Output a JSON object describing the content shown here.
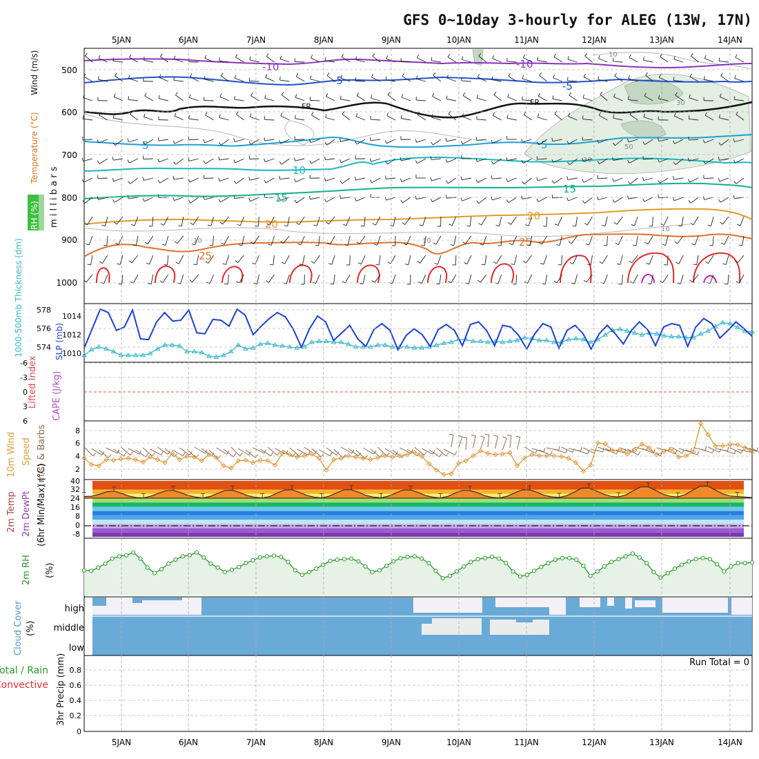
{
  "title": "GFS 0~10day 3-hourly for ALEG (13W, 17N)",
  "colors": {
    "grid": "#aaaaaa",
    "rh_fill": "#e6f2e6",
    "slp": "#1a3fd0",
    "thick": "#35b6c8",
    "wind10m": "#e09a3a",
    "barb": "#8a6a50",
    "temp_line": "#3a2a2a",
    "rh2m": "#2a9a2a",
    "cloud": "#6aaad6",
    "cloud_clear": "#f4f0f8",
    "red": "#e03030",
    "purple": "#9a3ad0"
  },
  "dates": [
    "5JAN",
    "6JAN",
    "7JAN",
    "8JAN",
    "9JAN",
    "10JAN",
    "11JAN",
    "12JAN",
    "13JAN",
    "14JAN"
  ],
  "panel1": {
    "ylabel_parts": {
      "rh": "RH (%)",
      "temp": "Temperature (°C)",
      "wind": "Wind (m/s)",
      "mb": "m i l l i b a r s"
    },
    "y_ticks": [
      "500",
      "600",
      "700",
      "800",
      "900",
      "1000"
    ],
    "isotherm_labels": [
      "-10",
      "-10",
      "-5",
      "-5",
      "FR",
      "FR",
      "5",
      "5",
      "10",
      "15",
      "15",
      "20",
      "20",
      "25",
      "25"
    ],
    "rh_labels": [
      "10",
      "30",
      "50",
      "30",
      "10",
      "10",
      "10"
    ]
  },
  "panel2": {
    "ylabel_thick": "1000-500mb Thickness (dm)",
    "ylabel_slp": "SLP (mb)",
    "thick_ticks": [
      "578",
      "576",
      "574"
    ],
    "slp_ticks": [
      "1014",
      "1012",
      "1010"
    ]
  },
  "panel3": {
    "ylabel_li": "Lifted Index",
    "ylabel_cape": "CAPE (J/kg)",
    "li_ticks": [
      "-6",
      "-3",
      "0",
      "3",
      "6"
    ]
  },
  "panel4": {
    "ylabel_a": "10m Wind",
    "ylabel_b": "Speed",
    "ylabel_c": "(m/s) & Barbs",
    "ticks": [
      "8",
      "6",
      "4",
      "2"
    ]
  },
  "panel5": {
    "ylabel_a": "2m Temp",
    "ylabel_b": "2m DewPt",
    "ylabel_c": "(6hr Min/Max) (°C)",
    "ticks": [
      "40",
      "32",
      "24",
      "16",
      "8",
      "0",
      "-8"
    ]
  },
  "panel6": {
    "ylabel": "2m RH",
    "unit": "(%)"
  },
  "panel7": {
    "ylabel": "Cloud Cover",
    "unit": "(%)",
    "levels": [
      "high",
      "middle",
      "low"
    ]
  },
  "panel8": {
    "ylabel_a": "Total / Rain",
    "ylabel_b": "Convective",
    "ylabel_c": "3hr Precip (mm)",
    "ticks": [
      "0.8",
      "0.6",
      "0.4",
      "0.2",
      "0"
    ],
    "run_total": "Run Total = 0"
  },
  "chart_data": [
    {
      "type": "line",
      "title": "1000-500mb Thickness (dm) & SLP (mb)",
      "ylim_thickness": [
        573,
        579
      ],
      "ylim_slp": [
        1008.6,
        1015.2
      ],
      "series": [
        {
          "name": "SLP (mb)",
          "values": [
            1010.1,
            1012.4,
            1014.7,
            1014.3,
            1012.2,
            1012.6,
            1014.6,
            1011.2,
            1011.1,
            1013.2,
            1014.3,
            1013.3,
            1013.4,
            1014.6,
            1011.9,
            1011.8,
            1013.5,
            1013.4,
            1012.7,
            1014.7,
            1014.0,
            1011.7,
            1012.7,
            1013.6,
            1014.3,
            1013.8,
            1012.3,
            1010.2,
            1012.4,
            1013.9,
            1013.2,
            1011.0,
            1011.9,
            1012.8,
            1011.2,
            1010.3,
            1012.3,
            1013.0,
            1012.2,
            1009.9,
            1011.6,
            1012.4,
            1011.7,
            1010.3,
            1012.3,
            1012.9,
            1012.2,
            1010.4,
            1012.9,
            1013.2,
            1012.2,
            1010.4,
            1012.8,
            1012.6,
            1011.6,
            1010.0,
            1011.8,
            1013.0,
            1012.6,
            1010.1,
            1012.2,
            1012.8,
            1011.8,
            1010.0,
            1011.8,
            1012.8,
            1011.8,
            1010.6,
            1012.2,
            1013.2,
            1012.3,
            1010.4,
            1012.6,
            1013.0,
            1012.8,
            1010.3,
            1012.6,
            1013.6,
            1013.0,
            1011.3,
            1012.2,
            1013.2,
            1012.4,
            1011.5
          ]
        },
        {
          "name": "1000-500mb Thickness (dm)",
          "values": [
            573.6,
            574.2,
            574.5,
            574.3,
            574.0,
            573.6,
            573.6,
            573.6,
            573.6,
            573.8,
            574.3,
            574.7,
            574.7,
            574.6,
            574.0,
            574.0,
            573.9,
            573.5,
            573.4,
            573.6,
            574.0,
            574.7,
            574.3,
            574.4,
            574.8,
            574.9,
            574.7,
            574.6,
            574.5,
            574.4,
            574.5,
            575.0,
            575.1,
            575.1,
            575.0,
            575.0,
            574.8,
            574.5,
            574.5,
            574.5,
            574.7,
            574.7,
            574.5,
            574.5,
            574.5,
            574.4,
            574.4,
            574.5,
            574.7,
            574.9,
            575.0,
            575.3,
            575.3,
            575.1,
            575.1,
            575.0,
            575.1,
            575.0,
            575.1,
            575.2,
            575.5,
            575.4,
            575.2,
            575.2,
            575.0,
            575.0,
            575.3,
            575.4,
            575.3,
            575.0,
            575.3,
            575.8,
            576.3,
            576.4,
            576.2,
            576.0,
            575.8,
            576.0,
            575.9,
            575.7,
            575.6,
            575.6,
            575.5,
            575.5,
            575.9,
            576.2,
            576.7,
            577.1,
            577.0,
            576.6,
            576.2,
            576.1
          ]
        }
      ]
    },
    {
      "type": "line",
      "title": "10m Wind Speed (m/s)",
      "ylim": [
        0,
        9
      ],
      "values": [
        3.2,
        2.2,
        2.0,
        3.0,
        2.9,
        3.1,
        3.2,
        3.0,
        2.6,
        3.4,
        3.0,
        2.5,
        4.0,
        3.0,
        3.5,
        3.4,
        2.8,
        3.8,
        3.3,
        2.0,
        1.6,
        2.8,
        2.9,
        2.5,
        2.9,
        2.8,
        2.1,
        4.0,
        3.8,
        3.4,
        3.6,
        3.9,
        3.2,
        1.3,
        3.0,
        3.2,
        3.6,
        3.4,
        3.2,
        3.0,
        3.3,
        3.6,
        3.4,
        3.6,
        3.8,
        4.2,
        3.5,
        2.3,
        1.3,
        0.6,
        0.7,
        2.4,
        2.8,
        3.6,
        4.4,
        4.0,
        3.8,
        3.9,
        4.1,
        2.0,
        3.2,
        3.8,
        3.6,
        3.6,
        3.6,
        3.5,
        3.2,
        2.5,
        1.1,
        2.1,
        5.7,
        5.5,
        4.4,
        4.6,
        3.9,
        4.5,
        5.5,
        4.9,
        3.8,
        4.3,
        4.7,
        3.4,
        3.6,
        4.2,
        8.8,
        7.0,
        5.2,
        5.2,
        5.4,
        5.4,
        4.9,
        4.2
      ]
    },
    {
      "type": "area",
      "title": "2m Temp (°C)",
      "ylim": [
        -12,
        40
      ],
      "values": [
        25.5,
        25.8,
        27.5,
        29.8,
        30.5,
        28.5,
        26.0,
        24.5,
        24.2,
        25.8,
        28.5,
        30.8,
        31.2,
        29.0,
        26.5,
        25.0,
        24.2,
        25.6,
        28.5,
        31.2,
        31.4,
        29.0,
        26.4,
        24.8,
        24.2,
        25.5,
        28.7,
        31.6,
        31.8,
        29.3,
        26.6,
        24.9,
        24.2,
        25.8,
        28.8,
        31.8,
        31.8,
        29.4,
        26.5,
        24.9,
        24.4,
        25.9,
        28.8,
        31.5,
        31.5,
        29.2,
        26.4,
        24.9,
        24.2,
        25.6,
        28.8,
        31.2,
        31.0,
        29.0,
        26.2,
        24.7,
        24.2,
        25.8,
        28.9,
        31.6,
        31.7,
        29.5,
        26.6,
        25.2,
        24.6,
        26.2,
        29.5,
        33.2,
        33.4,
        30.6,
        27.6,
        25.7,
        25.2,
        27.0,
        31.0,
        34.5,
        34.4,
        31.2,
        27.6,
        25.7,
        25.2,
        27.3,
        31.4,
        35.0,
        35.2,
        31.7,
        28.0,
        26.0,
        25.5,
        25.0,
        24.5
      ]
    },
    {
      "type": "area",
      "title": "2m RH (%)",
      "ylim": [
        0,
        100
      ],
      "values": [
        45,
        44,
        50,
        57,
        66,
        70,
        72,
        77,
        66,
        50,
        40,
        47,
        57,
        64,
        70,
        72,
        77,
        68,
        57,
        50,
        42,
        46,
        51,
        58,
        63,
        68,
        70,
        71,
        69,
        60,
        45,
        37,
        42,
        48,
        55,
        62,
        64,
        65,
        66,
        61,
        52,
        42,
        45,
        53,
        61,
        67,
        69,
        70,
        66,
        58,
        44,
        31,
        35,
        43,
        52,
        60,
        65,
        67,
        69,
        66,
        58,
        43,
        34,
        37,
        44,
        51,
        58,
        64,
        67,
        67,
        64,
        53,
        35,
        43,
        52,
        60,
        65,
        70,
        75,
        68,
        58,
        42,
        32,
        40,
        48,
        55,
        61,
        65,
        67,
        65,
        56,
        43,
        52,
        58,
        58,
        59
      ]
    }
  ]
}
